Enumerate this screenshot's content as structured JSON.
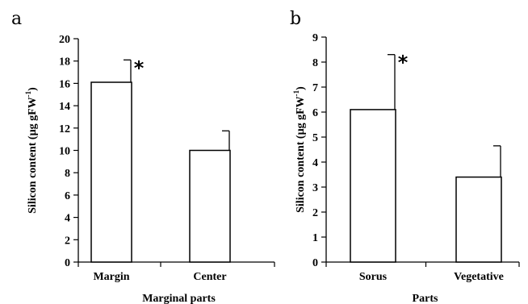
{
  "chart_data": [
    {
      "panel": "a",
      "type": "bar",
      "categories": [
        "Margin",
        "Center"
      ],
      "values": [
        16.1,
        10.0
      ],
      "errors": [
        2.0,
        1.75
      ],
      "significance": [
        "*",
        ""
      ],
      "xlabel": "Marginal parts",
      "ylabel": {
        "main": "Silicon content (µg gFW",
        "sup": "-1",
        "close": ")"
      },
      "ylim": [
        0,
        20
      ],
      "yticks": [
        0,
        2,
        4,
        6,
        8,
        10,
        12,
        14,
        16,
        18,
        20
      ],
      "grid": false
    },
    {
      "panel": "b",
      "type": "bar",
      "categories": [
        "Sorus",
        "Vegetative"
      ],
      "values": [
        6.1,
        3.4
      ],
      "errors": [
        2.2,
        1.25
      ],
      "significance": [
        "*",
        ""
      ],
      "xlabel": "Parts",
      "ylabel": {
        "main": "Silicon content (µg gFW",
        "sup": "-1",
        "close": ")"
      },
      "ylim": [
        0,
        9
      ],
      "yticks": [
        0,
        1,
        2,
        3,
        4,
        5,
        6,
        7,
        8,
        9
      ],
      "grid": false
    }
  ]
}
